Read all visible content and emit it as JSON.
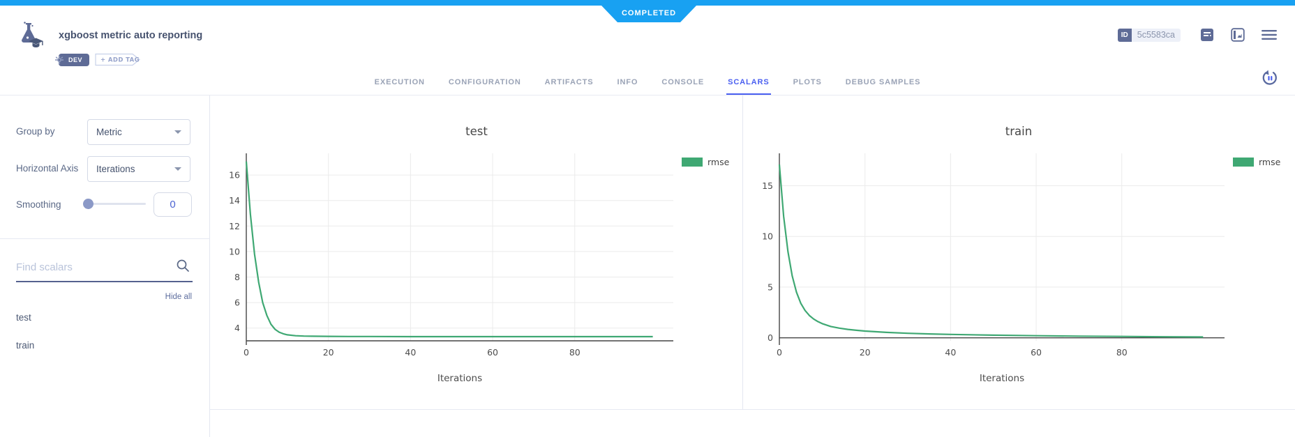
{
  "status_banner": {
    "label": "COMPLETED"
  },
  "header": {
    "title": "xgboost metric auto reporting",
    "tags": [
      {
        "label": "DEV"
      }
    ],
    "add_tag_label": "+ ADD TAG",
    "id_label": "ID",
    "id_value": "5c5583ca"
  },
  "tabs": {
    "items": [
      "EXECUTION",
      "CONFIGURATION",
      "ARTIFACTS",
      "INFO",
      "CONSOLE",
      "SCALARS",
      "PLOTS",
      "DEBUG SAMPLES"
    ],
    "active": "SCALARS"
  },
  "sidebar": {
    "group_by_label": "Group by",
    "group_by_value": "Metric",
    "horizontal_axis_label": "Horizontal Axis",
    "horizontal_axis_value": "Iterations",
    "smoothing_label": "Smoothing",
    "smoothing_value": "0",
    "search_placeholder": "Find scalars",
    "hide_all_label": "Hide all",
    "scalars": [
      "test",
      "train"
    ]
  },
  "colors": {
    "top_bar_blue": "#18a1f2",
    "accent_blue": "#4a5ff0",
    "slate": "#5e6b96",
    "series_green": "#3fa873"
  },
  "chart_data": [
    {
      "type": "line",
      "title": "test",
      "xlabel": "Iterations",
      "legend_position": "right",
      "grid": true,
      "xlim": [
        0,
        104
      ],
      "ylim": [
        3.0,
        17.7
      ],
      "baseline": 3.0,
      "x_ticks": [
        0,
        20,
        40,
        60,
        80
      ],
      "y_ticks": [
        4,
        6,
        8,
        10,
        12,
        14,
        16
      ],
      "series": [
        {
          "name": "rmse",
          "color": "#3fa873",
          "points": [
            [
              0,
              17.06
            ],
            [
              1,
              12.9
            ],
            [
              2,
              9.8
            ],
            [
              3,
              7.6
            ],
            [
              4,
              6.0
            ],
            [
              5,
              5.0
            ],
            [
              6,
              4.3
            ],
            [
              7,
              3.9
            ],
            [
              8,
              3.68
            ],
            [
              9,
              3.55
            ],
            [
              10,
              3.47
            ],
            [
              12,
              3.4
            ],
            [
              14,
              3.37
            ],
            [
              16,
              3.36
            ],
            [
              20,
              3.35
            ],
            [
              25,
              3.34
            ],
            [
              30,
              3.34
            ],
            [
              40,
              3.33
            ],
            [
              50,
              3.33
            ],
            [
              60,
              3.33
            ],
            [
              70,
              3.33
            ],
            [
              80,
              3.33
            ],
            [
              90,
              3.33
            ],
            [
              99,
              3.33
            ]
          ]
        }
      ]
    },
    {
      "type": "line",
      "title": "train",
      "xlabel": "Iterations",
      "legend_position": "right",
      "grid": true,
      "xlim": [
        0,
        104
      ],
      "ylim": [
        -0.3,
        18.2
      ],
      "baseline": 0,
      "x_ticks": [
        0,
        20,
        40,
        60,
        80
      ],
      "y_ticks": [
        0,
        5,
        10,
        15
      ],
      "series": [
        {
          "name": "rmse",
          "color": "#3fa873",
          "points": [
            [
              0,
              17.1
            ],
            [
              1,
              12.0
            ],
            [
              2,
              8.5
            ],
            [
              3,
              6.1
            ],
            [
              4,
              4.5
            ],
            [
              5,
              3.4
            ],
            [
              6,
              2.7
            ],
            [
              7,
              2.2
            ],
            [
              8,
              1.85
            ],
            [
              9,
              1.6
            ],
            [
              10,
              1.4
            ],
            [
              12,
              1.12
            ],
            [
              14,
              0.95
            ],
            [
              16,
              0.83
            ],
            [
              18,
              0.74
            ],
            [
              20,
              0.66
            ],
            [
              25,
              0.53
            ],
            [
              30,
              0.44
            ],
            [
              35,
              0.38
            ],
            [
              40,
              0.33
            ],
            [
              50,
              0.26
            ],
            [
              60,
              0.2
            ],
            [
              70,
              0.16
            ],
            [
              80,
              0.13
            ],
            [
              90,
              0.1
            ],
            [
              99,
              0.08
            ]
          ]
        }
      ]
    }
  ]
}
